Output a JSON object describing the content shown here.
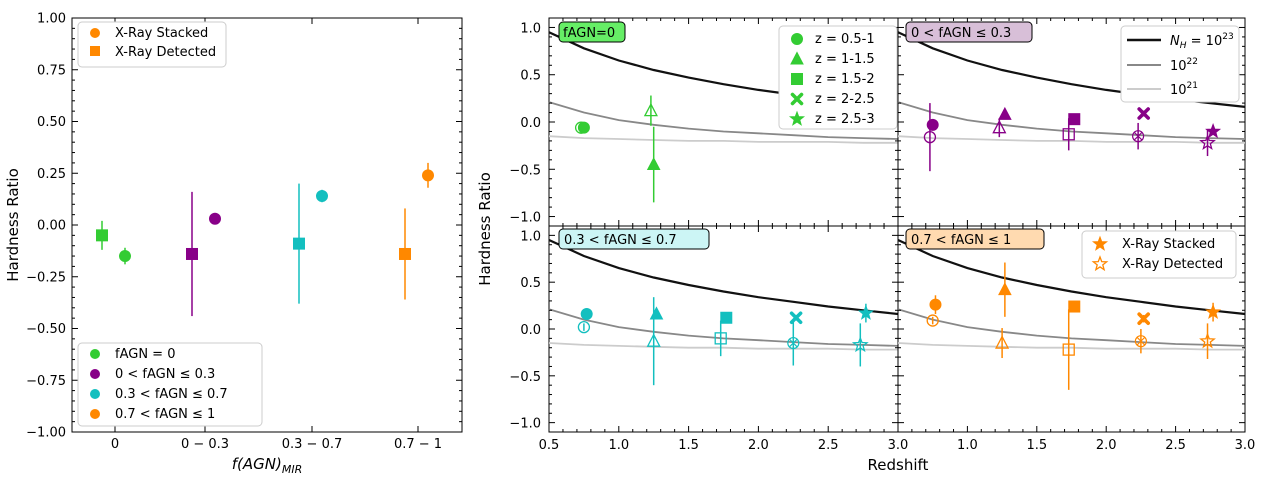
{
  "colors": {
    "fagn0": "#33cc33",
    "fagn03": "#880088",
    "fagn37": "#13bfbf",
    "fagn71": "#ff8800",
    "nh23": "#111111",
    "nh22": "#888888",
    "nh21": "#cccccc",
    "legend_gray": "#cccccc"
  },
  "left_panel": {
    "xlabel_main": "f(AGN)",
    "xlabel_sub": "MIR",
    "ylabel": "Hardness Ratio",
    "ylim": [
      -1.0,
      1.0
    ],
    "yticks": [
      "1.00",
      "0.75",
      "0.50",
      "0.25",
      "0.00",
      "−0.25",
      "−0.50",
      "−0.75",
      "−1.00"
    ],
    "ytick_values": [
      1.0,
      0.75,
      0.5,
      0.25,
      0.0,
      -0.25,
      -0.5,
      -0.75,
      -1.0
    ],
    "xticks": [
      "0",
      "0 − 0.3",
      "0.3 − 0.7",
      "0.7 − 1"
    ],
    "legend_top": [
      {
        "marker": "circle",
        "label": "X-Ray Stacked"
      },
      {
        "marker": "square",
        "label": "X-Ray Detected"
      }
    ],
    "legend_bottom": [
      {
        "color_key": "fagn0",
        "label": "fAGN = 0"
      },
      {
        "color_key": "fagn03",
        "label": "0 < fAGN ≤ 0.3"
      },
      {
        "color_key": "fagn37",
        "label": "0.3 < fAGN ≤ 0.7"
      },
      {
        "color_key": "fagn71",
        "label": "0.7 < fAGN ≤ 1"
      }
    ]
  },
  "right_panels": {
    "xlabel": "Redshift",
    "ylabel": "Hardness Ratio",
    "xlim": [
      0.5,
      3.0
    ],
    "ylim": [
      -1.1,
      1.1
    ],
    "xticks": [
      "0.5",
      "1.0",
      "1.5",
      "2.0",
      "2.5",
      "3.0"
    ],
    "xtick_values": [
      0.5,
      1.0,
      1.5,
      2.0,
      2.5,
      3.0
    ],
    "yticks": [
      "1.0",
      "0.5",
      "0.0",
      "−0.5",
      "−1.0"
    ],
    "ytick_values": [
      1.0,
      0.5,
      0.0,
      -0.5,
      -1.0
    ],
    "panel_titles": [
      "fAGN=0",
      "0 < fAGN ≤ 0.3",
      "0.3 < fAGN ≤ 0.7",
      "0.7 < fAGN ≤ 1"
    ],
    "panel_title_bgs": [
      "#66ee66",
      "#d8bfd8",
      "#ccf5f5",
      "#ffdab0"
    ],
    "redshift_legend": [
      {
        "marker": "circle",
        "label": "z = 0.5-1"
      },
      {
        "marker": "triangle",
        "label": "z = 1-1.5"
      },
      {
        "marker": "square",
        "label": "z = 1.5-2"
      },
      {
        "marker": "cross",
        "label": "z = 2-2.5"
      },
      {
        "marker": "star",
        "label": "z = 2.5-3"
      }
    ],
    "nh_legend": [
      {
        "color_key": "nh23",
        "label_main": "N",
        "label_sub": "H",
        "label_rest": " = 10",
        "label_sup": "23"
      },
      {
        "color_key": "nh22",
        "label_main": "10",
        "label_sup": "22"
      },
      {
        "color_key": "nh21",
        "label_main": "10",
        "label_sup": "21"
      }
    ],
    "xray_legend": [
      {
        "marker": "star-filled",
        "label": "X-Ray Stacked"
      },
      {
        "marker": "star-open",
        "label": "X-Ray Detected"
      }
    ]
  },
  "chart_data": [
    {
      "type": "scatter",
      "title": "",
      "xlabel": "f(AGN)_MIR",
      "ylabel": "Hardness Ratio",
      "ylim": [
        -1.0,
        1.0
      ],
      "categories": [
        "0",
        "0 − 0.3",
        "0.3 − 0.7",
        "0.7 − 1"
      ],
      "series": [
        {
          "name": "X-Ray Stacked",
          "marker": "circle",
          "values": [
            -0.15,
            0.03,
            0.14,
            0.24
          ],
          "err": [
            0.04,
            0.02,
            0.03,
            0.06
          ]
        },
        {
          "name": "X-Ray Detected",
          "marker": "square",
          "values": [
            -0.05,
            -0.14,
            -0.09,
            -0.14
          ],
          "err_low": [
            0.07,
            0.3,
            0.29,
            0.22
          ],
          "err_high": [
            0.07,
            0.3,
            0.29,
            0.22
          ]
        }
      ]
    },
    {
      "type": "scatter",
      "panels": [
        {
          "title": "fAGN=0",
          "color_key": "fagn0",
          "stacked": [
            {
              "z": 0.75,
              "marker": "circle",
              "y": -0.06,
              "err": 0.05
            },
            {
              "z": 1.25,
              "marker": "triangle",
              "y": -0.45,
              "err": 0.4
            }
          ],
          "detected": [
            {
              "z": 0.73,
              "marker": "circle",
              "y": -0.06,
              "err": 0.04
            },
            {
              "z": 1.23,
              "marker": "triangle",
              "y": 0.12,
              "err": 0.16
            }
          ]
        },
        {
          "title": "0 < fAGN ≤ 0.3",
          "color_key": "fagn03",
          "stacked": [
            {
              "z": 0.75,
              "marker": "circle",
              "y": -0.03,
              "err": 0.03
            },
            {
              "z": 1.27,
              "marker": "triangle",
              "y": 0.08,
              "err": 0.03
            },
            {
              "z": 1.77,
              "marker": "square",
              "y": 0.03,
              "err": 0.03
            },
            {
              "z": 2.27,
              "marker": "cross",
              "y": 0.09,
              "err": 0.03
            },
            {
              "z": 2.77,
              "marker": "star",
              "y": -0.1,
              "err": 0.03
            }
          ],
          "detected": [
            {
              "z": 0.73,
              "marker": "circle",
              "y": -0.16,
              "err": 0.36
            },
            {
              "z": 1.23,
              "marker": "triangle",
              "y": -0.06,
              "err": 0.1
            },
            {
              "z": 1.73,
              "marker": "square",
              "y": -0.13,
              "err": 0.17
            },
            {
              "z": 2.23,
              "marker": "cross",
              "y": -0.15,
              "err": 0.14
            },
            {
              "z": 2.73,
              "marker": "star",
              "y": -0.22,
              "err": 0.14
            }
          ]
        },
        {
          "title": "0.3 < fAGN ≤ 0.7",
          "color_key": "fagn37",
          "stacked": [
            {
              "z": 0.77,
              "marker": "circle",
              "y": 0.16,
              "err": 0.04
            },
            {
              "z": 1.27,
              "marker": "triangle",
              "y": 0.16,
              "err": 0.03
            },
            {
              "z": 1.77,
              "marker": "square",
              "y": 0.12,
              "err": 0.03
            },
            {
              "z": 2.27,
              "marker": "cross",
              "y": 0.12,
              "err": 0.03
            },
            {
              "z": 2.77,
              "marker": "star",
              "y": 0.17,
              "err": 0.1
            }
          ],
          "detected": [
            {
              "z": 0.75,
              "marker": "circle",
              "y": 0.02,
              "err": 0.04
            },
            {
              "z": 1.25,
              "marker": "triangle",
              "y": -0.13,
              "err": 0.47
            },
            {
              "z": 1.73,
              "marker": "square",
              "y": -0.1,
              "err": 0.19
            },
            {
              "z": 2.25,
              "marker": "cross",
              "y": -0.15,
              "err": 0.24
            },
            {
              "z": 2.73,
              "marker": "star",
              "y": -0.17,
              "err": 0.23
            }
          ]
        },
        {
          "title": "0.7 < fAGN ≤ 1",
          "color_key": "fagn71",
          "stacked": [
            {
              "z": 0.77,
              "marker": "circle",
              "y": 0.26,
              "err": 0.1
            },
            {
              "z": 1.27,
              "marker": "triangle",
              "y": 0.42,
              "err": 0.29
            },
            {
              "z": 1.77,
              "marker": "square",
              "y": 0.24,
              "err": 0.06
            },
            {
              "z": 2.27,
              "marker": "cross",
              "y": 0.11,
              "err": 0.04
            },
            {
              "z": 2.77,
              "marker": "star",
              "y": 0.18,
              "err": 0.1
            }
          ],
          "detected": [
            {
              "z": 0.75,
              "marker": "circle",
              "y": 0.09,
              "err": 0.04
            },
            {
              "z": 1.25,
              "marker": "triangle",
              "y": -0.15,
              "err": 0.16
            },
            {
              "z": 1.73,
              "marker": "square",
              "y": -0.22,
              "err": 0.43
            },
            {
              "z": 2.25,
              "marker": "cross",
              "y": -0.13,
              "err": 0.13
            },
            {
              "z": 2.73,
              "marker": "star",
              "y": -0.13,
              "err": 0.19
            }
          ]
        }
      ],
      "model_curves": [
        {
          "name": "N_H = 10^23",
          "color_key": "nh23",
          "x": [
            0.5,
            0.75,
            1.0,
            1.25,
            1.5,
            1.75,
            2.0,
            2.25,
            2.5,
            2.75,
            3.0
          ],
          "y": [
            0.95,
            0.78,
            0.65,
            0.55,
            0.47,
            0.4,
            0.34,
            0.29,
            0.24,
            0.2,
            0.16
          ]
        },
        {
          "name": "10^22",
          "color_key": "nh22",
          "x": [
            0.5,
            0.75,
            1.0,
            1.25,
            1.5,
            1.75,
            2.0,
            2.25,
            2.5,
            2.75,
            3.0
          ],
          "y": [
            0.21,
            0.1,
            0.02,
            -0.03,
            -0.07,
            -0.1,
            -0.12,
            -0.14,
            -0.16,
            -0.17,
            -0.18
          ]
        },
        {
          "name": "10^21",
          "color_key": "nh21",
          "x": [
            0.5,
            0.75,
            1.0,
            1.25,
            1.5,
            1.75,
            2.0,
            2.25,
            2.5,
            2.75,
            3.0
          ],
          "y": [
            -0.15,
            -0.17,
            -0.18,
            -0.19,
            -0.2,
            -0.2,
            -0.21,
            -0.21,
            -0.21,
            -0.22,
            -0.22
          ]
        }
      ]
    }
  ]
}
